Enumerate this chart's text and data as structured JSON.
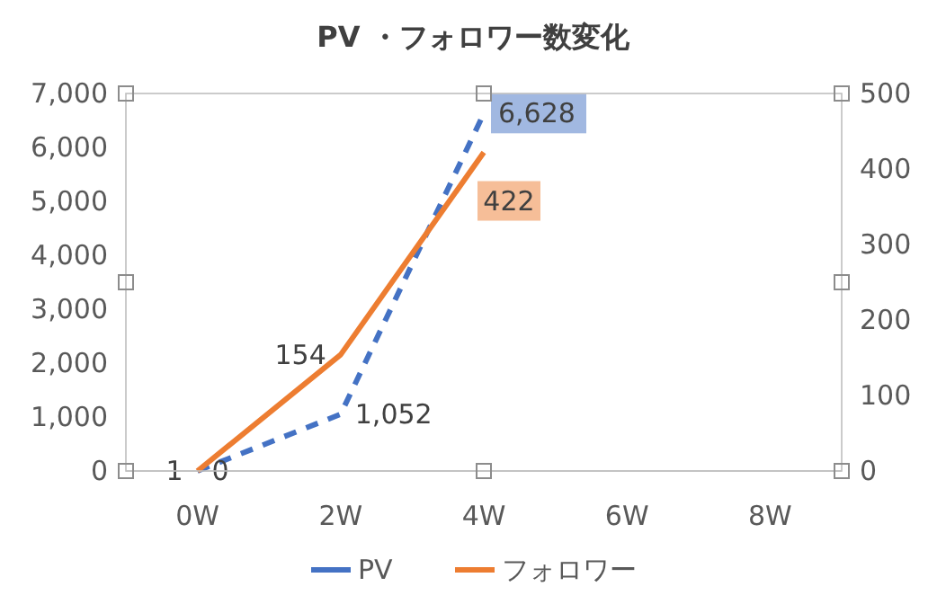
{
  "chart_data": {
    "type": "line",
    "title": "PV ・フォロワー数変化",
    "categories": [
      "0W",
      "2W",
      "4W",
      "6W",
      "8W"
    ],
    "series": [
      {
        "name": "PV",
        "color": "#4472c4",
        "values": [
          1,
          1052,
          6628,
          null,
          null
        ],
        "value_labels": [
          "1",
          "1,052",
          "6,628",
          null,
          null
        ],
        "line_style": "dashed"
      },
      {
        "name": "フォロワー",
        "color": "#ed7d31",
        "values": [
          0,
          154,
          422,
          null,
          null
        ],
        "value_labels": [
          "0",
          "154",
          "422",
          null,
          null
        ],
        "axis": "y2"
      }
    ],
    "ylim": [
      0,
      7000
    ],
    "yticks": [
      {
        "value": 0,
        "label": "0"
      },
      {
        "value": 1000,
        "label": "1,000"
      },
      {
        "value": 2000,
        "label": "2,000"
      },
      {
        "value": 3000,
        "label": "3,000"
      },
      {
        "value": 4000,
        "label": "4,000"
      },
      {
        "value": 5000,
        "label": "5,000"
      },
      {
        "value": 6000,
        "label": "6,000"
      },
      {
        "value": 7000,
        "label": "7,000"
      }
    ],
    "y2lim": [
      0,
      500
    ],
    "y2ticks": [
      0,
      100,
      200,
      300,
      400,
      500
    ],
    "legend": "bottom",
    "grid": false
  }
}
